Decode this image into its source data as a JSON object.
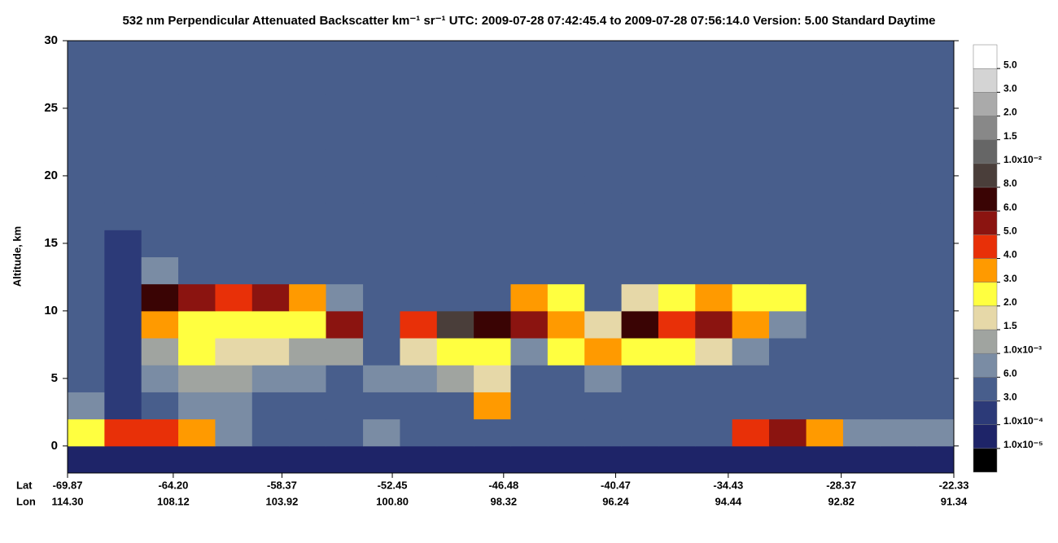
{
  "chart_data": {
    "type": "heatmap",
    "title": "532 nm Perpendicular Attenuated Backscatter km⁻¹ sr⁻¹  UTC: 2009-07-28 07:42:45.4 to 2009-07-28 07:56:14.0  Version: 5.00 Standard Daytime",
    "y_label": "Altitude, km",
    "x_row_labels": [
      "Lat",
      "Lon"
    ],
    "xlim": [
      -69.87,
      -22.33
    ],
    "ylim": [
      -2,
      30
    ],
    "yticks": [
      0,
      5,
      10,
      15,
      20,
      25,
      30
    ],
    "xticks": [
      -69.87,
      {
        "value": -64.2,
        "label": "-64.20"
      },
      -58.37,
      -52.45,
      -46.48,
      -40.47,
      -34.43,
      -28.37,
      -22.33
    ],
    "lon_ticks": [
      {
        "value": 114.3,
        "label": "114.30"
      },
      108.12,
      103.92,
      {
        "value": 100.8,
        "label": "100.80"
      },
      98.32,
      96.24,
      94.44,
      92.82,
      91.34
    ],
    "colorbar": {
      "boundaries": [
        {
          "value": 1e-05,
          "label": "1.0x10⁻⁵"
        },
        {
          "value": 0.0001,
          "label": "1.0x10⁻⁴"
        },
        {
          "value": 0.0003,
          "label": "3.0"
        },
        {
          "value": 0.0006,
          "label": "6.0"
        },
        {
          "value": 0.001,
          "label": "1.0x10⁻³"
        },
        {
          "value": 0.0015,
          "label": "1.5"
        },
        {
          "value": 0.002,
          "label": "2.0"
        },
        {
          "value": 0.003,
          "label": "3.0"
        },
        {
          "value": 0.004,
          "label": "4.0"
        },
        {
          "value": 0.005,
          "label": "5.0"
        },
        {
          "value": 0.006,
          "label": "6.0"
        },
        {
          "value": 0.008,
          "label": "8.0"
        },
        {
          "value": 0.01,
          "label": "1.0x10⁻²"
        },
        {
          "value": 0.015,
          "label": "1.5"
        },
        {
          "value": 0.02,
          "label": "2.0"
        },
        {
          "value": 0.03,
          "label": "3.0"
        },
        {
          "value": 0.05,
          "label": "5.0"
        }
      ],
      "colors": [
        "#000000",
        "#1e2468",
        "#2c3a78",
        "#485e8c",
        "#7a8ca4",
        "#a0a4a0",
        "#e6d8a8",
        "#ffff40",
        "#ff9a00",
        "#e83008",
        "#8b1410",
        "#3a0404",
        "#4a3e3a",
        "#666666",
        "#888888",
        "#aaaaaa",
        "#d4d4d4",
        "#ffffff"
      ]
    },
    "heatmap": {
      "xbins": [
        -69.87,
        -67.89,
        -65.91,
        -63.93,
        -61.95,
        -59.97,
        -57.99,
        -56.01,
        -54.02,
        -52.04,
        -50.06,
        -48.08,
        -46.1,
        -44.12,
        -42.14,
        -40.16,
        -38.18,
        -36.2,
        -34.22,
        -32.24,
        -30.25,
        -28.27,
        -26.29,
        -24.31,
        -22.33
      ],
      "ybins": [
        -2,
        0,
        2,
        4,
        6,
        8,
        10,
        12,
        14,
        16,
        18,
        20,
        22,
        24,
        26,
        28,
        30
      ],
      "values": [
        [
          5e-05,
          5e-05,
          5e-05,
          5e-05,
          5e-05,
          5e-05,
          5e-05,
          5e-05,
          5e-05,
          5e-05,
          5e-05,
          5e-05,
          5e-05,
          5e-05,
          5e-05,
          5e-05,
          5e-05,
          5e-05,
          5e-05,
          5e-05,
          5e-05,
          5e-05,
          5e-05,
          5e-05
        ],
        [
          0.002,
          0.004,
          0.004,
          0.003,
          0.0006,
          0.0003,
          0.0003,
          0.0003,
          0.0008,
          0.0003,
          0.0003,
          0.0003,
          0.0003,
          0.0003,
          0.0003,
          0.0003,
          0.0003,
          0.0003,
          0.004,
          0.005,
          0.003,
          0.0008,
          0.0006,
          0.0008
        ],
        [
          0.0008,
          0.0002,
          0.0004,
          0.0006,
          0.0006,
          0.0004,
          0.0003,
          0.0003,
          0.0003,
          0.0003,
          0.0003,
          0.003,
          0.0003,
          0.0003,
          0.0003,
          0.0003,
          0.0003,
          0.0003,
          0.0003,
          0.0003,
          0.0003,
          0.0003,
          0.0003,
          0.0003
        ],
        [
          0.0003,
          0.0002,
          0.0008,
          0.0012,
          0.001,
          0.0008,
          0.0008,
          0.0004,
          0.0006,
          0.0006,
          0.001,
          0.0015,
          0.0003,
          0.0003,
          0.0006,
          0.0003,
          0.0003,
          0.0003,
          0.0003,
          0.0003,
          0.0003,
          0.0003,
          0.0003,
          0.0003
        ],
        [
          0.0003,
          0.0002,
          0.0012,
          0.002,
          0.0015,
          0.0015,
          0.0012,
          0.001,
          0.0004,
          0.0015,
          0.002,
          0.0025,
          0.0008,
          0.0025,
          0.003,
          0.002,
          0.0025,
          0.0015,
          0.0006,
          0.0003,
          0.0003,
          0.0003,
          0.0003,
          0.0003
        ],
        [
          0.0003,
          0.0002,
          0.003,
          0.0025,
          0.002,
          0.0025,
          0.002,
          0.005,
          0.0004,
          0.004,
          0.008,
          0.006,
          0.005,
          0.003,
          0.0015,
          0.006,
          0.004,
          0.005,
          0.003,
          0.0008,
          0.0003,
          0.0003,
          0.0003,
          0.0003
        ],
        [
          0.0003,
          0.0002,
          0.006,
          0.005,
          0.004,
          0.005,
          0.003,
          0.0006,
          0.0003,
          0.0003,
          0.0003,
          0.0003,
          0.003,
          0.002,
          0.0003,
          0.0015,
          0.002,
          0.003,
          0.0025,
          0.002,
          0.0003,
          0.0003,
          0.0003,
          0.0003
        ],
        [
          0.0003,
          0.0002,
          0.0006,
          0.0005,
          0.0003,
          0.0003,
          0.0003,
          0.0003,
          0.0003,
          0.0003,
          0.0003,
          0.0003,
          0.0003,
          0.0003,
          0.0003,
          0.0003,
          0.0003,
          0.0003,
          0.0003,
          0.0003,
          0.0003,
          0.0003,
          0.0003,
          0.0003
        ],
        [
          0.0003,
          0.0002,
          0.0003,
          0.0003,
          0.0003,
          0.0003,
          0.0003,
          0.0003,
          0.0003,
          0.0003,
          0.0003,
          0.0003,
          0.0003,
          0.0003,
          0.0003,
          0.0003,
          0.0003,
          0.0003,
          0.0003,
          0.0003,
          0.0003,
          0.0003,
          0.0003,
          0.0003
        ],
        [
          0.0003,
          0.0003,
          0.0003,
          0.0003,
          0.0003,
          0.0003,
          0.0003,
          0.0003,
          0.0003,
          0.0003,
          0.0003,
          0.0003,
          0.0003,
          0.0003,
          0.0003,
          0.0003,
          0.0003,
          0.0003,
          0.0003,
          0.0003,
          0.0003,
          0.0003,
          0.0003,
          0.0003
        ],
        [
          0.0003,
          0.0003,
          0.0003,
          0.0003,
          0.0003,
          0.0003,
          0.0003,
          0.0003,
          0.0003,
          0.0003,
          0.0003,
          0.0003,
          0.0003,
          0.0003,
          0.0003,
          0.0003,
          0.0003,
          0.0003,
          0.0003,
          0.0003,
          0.0003,
          0.0003,
          0.0003,
          0.0003
        ],
        [
          0.0003,
          0.0003,
          0.0003,
          0.0003,
          0.0003,
          0.0003,
          0.0003,
          0.0003,
          0.0003,
          0.0003,
          0.0003,
          0.0003,
          0.0003,
          0.0003,
          0.0003,
          0.0003,
          0.0003,
          0.0003,
          0.0003,
          0.0003,
          0.0003,
          0.0003,
          0.0003,
          0.0003
        ],
        [
          0.0003,
          0.0003,
          0.0003,
          0.0003,
          0.0003,
          0.0003,
          0.0003,
          0.0003,
          0.0003,
          0.0003,
          0.0003,
          0.0003,
          0.0003,
          0.0003,
          0.0003,
          0.0003,
          0.0003,
          0.0003,
          0.0003,
          0.0003,
          0.0003,
          0.0003,
          0.0003,
          0.0003
        ],
        [
          0.0003,
          0.0003,
          0.0003,
          0.0003,
          0.0003,
          0.0003,
          0.0003,
          0.0003,
          0.0003,
          0.0003,
          0.0003,
          0.0003,
          0.0003,
          0.0003,
          0.0003,
          0.0003,
          0.0003,
          0.0003,
          0.0003,
          0.0003,
          0.0003,
          0.0003,
          0.0003,
          0.0003
        ],
        [
          0.0003,
          0.0003,
          0.0003,
          0.0003,
          0.0003,
          0.0003,
          0.0003,
          0.0003,
          0.0003,
          0.0003,
          0.0003,
          0.0003,
          0.0003,
          0.0003,
          0.0003,
          0.0003,
          0.0003,
          0.0003,
          0.0003,
          0.0003,
          0.0003,
          0.0003,
          0.0003,
          0.0003
        ],
        [
          0.0003,
          0.0003,
          0.0003,
          0.0003,
          0.0003,
          0.0003,
          0.0003,
          0.0003,
          0.0003,
          0.0003,
          0.0003,
          0.0003,
          0.0003,
          0.0003,
          0.0003,
          0.0003,
          0.0003,
          0.0003,
          0.0003,
          0.0003,
          0.0003,
          0.0003,
          0.0003,
          0.0003
        ]
      ]
    }
  }
}
